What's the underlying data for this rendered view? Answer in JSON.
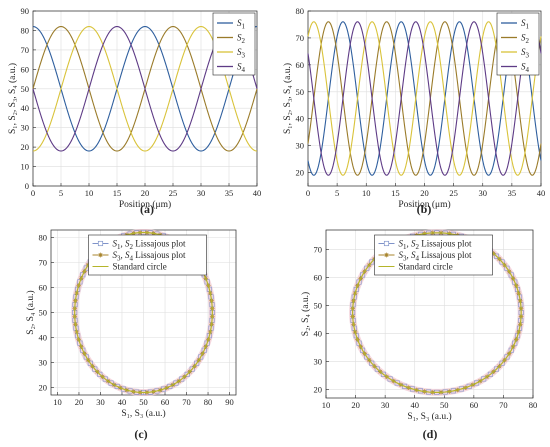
{
  "chart_data": [
    {
      "id": "a",
      "panel_label": "(a)",
      "type": "line",
      "xlabel": "Position (μm)",
      "ylabel": "S₁, S₂, S₃, S₄ (a.u.)",
      "xlim": [
        0,
        40
      ],
      "ylim": [
        0,
        90
      ],
      "xticks": [
        0,
        5,
        10,
        15,
        20,
        25,
        30,
        35,
        40
      ],
      "yticks": [
        0,
        10,
        20,
        30,
        40,
        50,
        60,
        70,
        80,
        90
      ],
      "grid": true,
      "legend": "top-right",
      "signal": {
        "offset": 50,
        "amplitude": 32,
        "period_um": 20
      },
      "series": [
        {
          "name": "S1",
          "label_base": "S",
          "label_sub": "1",
          "phase_deg": 0,
          "color": "#2f5f9e"
        },
        {
          "name": "S2",
          "label_base": "S",
          "label_sub": "2",
          "phase_deg": 90,
          "color": "#9a7b2a"
        },
        {
          "name": "S3",
          "label_base": "S",
          "label_sub": "3",
          "phase_deg": 180,
          "color": "#d9c33a"
        },
        {
          "name": "S4",
          "label_base": "S",
          "label_sub": "4",
          "phase_deg": 270,
          "color": "#5e3b86"
        }
      ]
    },
    {
      "id": "b",
      "panel_label": "(b)",
      "type": "line",
      "xlabel": "Position (μm)",
      "ylabel": "S₁, S₂, S₃, S₄ (a.u.)",
      "xlim": [
        0,
        40
      ],
      "ylim": [
        15,
        80
      ],
      "xticks": [
        0,
        5,
        10,
        15,
        20,
        25,
        30,
        35,
        40
      ],
      "yticks": [
        20,
        30,
        40,
        50,
        60,
        70,
        80
      ],
      "grid": true,
      "legend": "top-right",
      "signal": {
        "offset": 47.5,
        "amplitude": 28.5,
        "period_um": 10
      },
      "series": [
        {
          "name": "S1",
          "label_base": "S",
          "label_sub": "1",
          "phase_deg": -144,
          "color": "#2f5f9e"
        },
        {
          "name": "S2",
          "label_base": "S",
          "label_sub": "2",
          "phase_deg": -234,
          "color": "#9a7b2a"
        },
        {
          "name": "S3",
          "label_base": "S",
          "label_sub": "3",
          "phase_deg": 36,
          "color": "#d9c33a"
        },
        {
          "name": "S4",
          "label_base": "S",
          "label_sub": "4",
          "phase_deg": -54,
          "color": "#5e3b86"
        }
      ]
    },
    {
      "id": "c",
      "panel_label": "(c)",
      "type": "scatter",
      "xlabel": "S₁, S₃ (a.u.)",
      "ylabel": "S₂, S₄ (a.u.)",
      "xlim": [
        7,
        93
      ],
      "ylim": [
        17,
        83
      ],
      "xticks": [
        10,
        20,
        30,
        40,
        50,
        60,
        70,
        80,
        90
      ],
      "yticks": [
        20,
        30,
        40,
        50,
        60,
        70,
        80
      ],
      "grid": true,
      "legend": "top-center",
      "circle": {
        "cx": 50,
        "cy": 50,
        "r": 32
      },
      "series": [
        {
          "name": "S1, S2 Lissajous plot",
          "label_html": [
            "S",
            "1",
            ", S",
            "2",
            " Lissajous plot"
          ],
          "marker": "square",
          "color": "#7f93c9"
        },
        {
          "name": "S3, S4 Lissajous plot",
          "label_html": [
            "S",
            "3",
            ", S",
            "4",
            " Lissajous plot"
          ],
          "marker": "star",
          "color": "#a8842d"
        },
        {
          "name": "Standard circle",
          "label_html": [
            "Standard circle"
          ],
          "marker": "line",
          "color": "#b5b52a"
        }
      ]
    },
    {
      "id": "d",
      "panel_label": "(d)",
      "type": "scatter",
      "xlabel": "S₁, S₃ (a.u.)",
      "ylabel": "S₂, S₄ (a.u.)",
      "xlim": [
        10,
        80
      ],
      "ylim": [
        17,
        77
      ],
      "xticks": [
        10,
        20,
        30,
        40,
        50,
        60,
        70,
        80
      ],
      "yticks": [
        20,
        30,
        40,
        50,
        60,
        70
      ],
      "grid": true,
      "legend": "top-center",
      "circle": {
        "cx": 47.5,
        "cy": 47.5,
        "r": 28.5
      },
      "series": [
        {
          "name": "S1, S2 Lissajous plot",
          "label_html": [
            "S",
            "1",
            ", S",
            "2",
            " Lissajous plot"
          ],
          "marker": "square",
          "color": "#7f93c9"
        },
        {
          "name": "S3, S4 Lissajous plot",
          "label_html": [
            "S",
            "3",
            ", S",
            "4",
            " Lissajous plot"
          ],
          "marker": "star",
          "color": "#a8842d"
        },
        {
          "name": "Standard circle",
          "label_html": [
            "Standard circle"
          ],
          "marker": "line",
          "color": "#b5b52a"
        }
      ]
    }
  ]
}
